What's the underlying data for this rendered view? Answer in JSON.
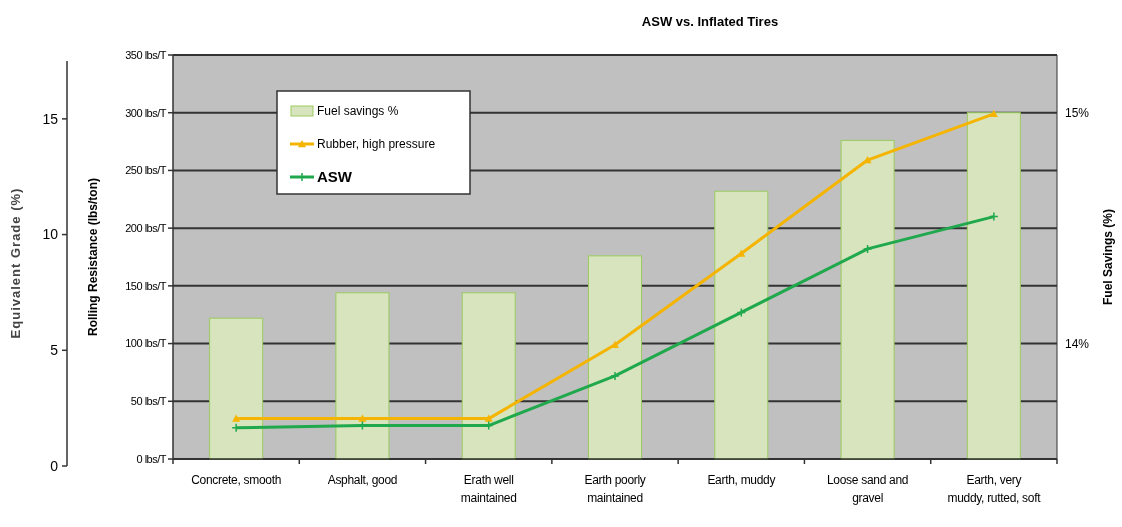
{
  "chart_data": {
    "type": "bar",
    "title": "ASW vs. Inflated Tires",
    "categories": [
      "Concrete, smooth",
      "Asphalt, good",
      "Erath well\nmaintained",
      "Earth poorly\nmaintained",
      "Earth, muddy",
      "Loose sand and\ngravel",
      "Earth, very\nmuddy, rutted, soft"
    ],
    "series": [
      {
        "name": "Fuel savings %",
        "axis": "y2",
        "color": "#d7e4bd",
        "values": [
          14.11,
          14.22,
          14.22,
          14.38,
          14.66,
          14.88,
          15.0
        ]
      },
      {
        "name": "Rubber, high pressure",
        "type": "line",
        "color": "#f5b400",
        "marker": "triangle",
        "values": [
          35,
          35,
          35,
          99,
          178,
          259,
          299
        ]
      },
      {
        "name": "ASW",
        "type": "line",
        "color": "#1fa84c",
        "marker": "cross",
        "values": [
          27,
          29,
          29,
          72,
          127,
          182,
          210
        ]
      }
    ],
    "ylabel": "Rolling Resistance (lbs/ton)",
    "ylim": [
      0,
      350
    ],
    "yticks": [
      {
        "value": 0,
        "label": "0 lbs/T"
      },
      {
        "value": 50,
        "label": "50 lbs/T"
      },
      {
        "value": 100,
        "label": "100 lbs/T"
      },
      {
        "value": 150,
        "label": "150 lbs/T"
      },
      {
        "value": 200,
        "label": "200 lbs/T"
      },
      {
        "value": 250,
        "label": "250 lbs/T"
      },
      {
        "value": 300,
        "label": "300 lbs/T"
      },
      {
        "value": 350,
        "label": "350 lbs/T"
      }
    ],
    "y2label": "Fuel Savings (%)",
    "y2lim": [
      13.5,
      15.25
    ],
    "y2ticks": [
      {
        "value": 14,
        "label": "14%"
      },
      {
        "value": 15,
        "label": "15%"
      }
    ],
    "y3label": "Equivalent Grade (%)",
    "y3lim": [
      0,
      17.5
    ],
    "y3ticks": [
      0,
      5,
      10,
      15
    ],
    "grid": "y",
    "legend": "top left",
    "line_style": "solid"
  }
}
